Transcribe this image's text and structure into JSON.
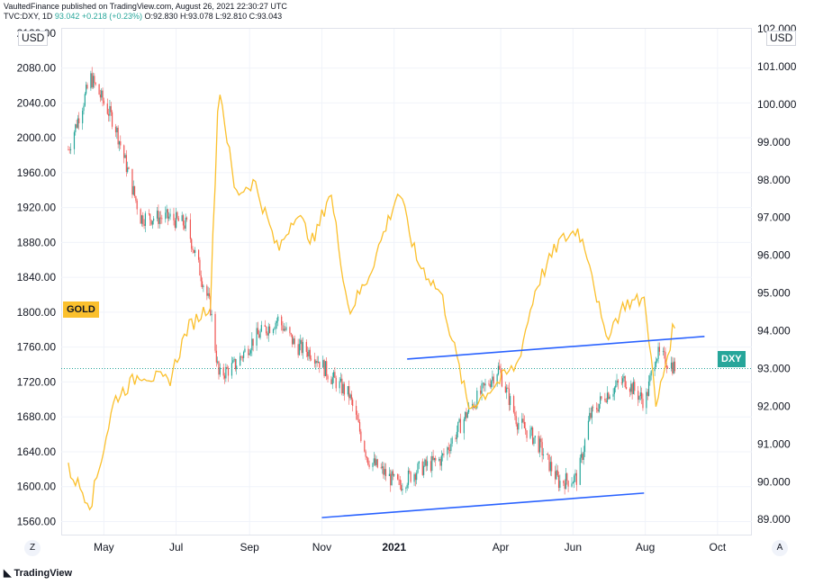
{
  "header": {
    "line1": "VaultedFinance published on TradingView.com, August 26, 2021 22:30:27 UTC",
    "symbol": "TVC:DXY, 1D",
    "last": "93.042",
    "change": "+0.218 (+0.23%)",
    "open": "O:92.830",
    "high": "H:93.078",
    "low": "L:92.810",
    "close": "C:93.043"
  },
  "left_axis": {
    "unit": "USD",
    "top_partial": "2120.00",
    "ticks": [
      "2080.00",
      "2040.00",
      "2000.00",
      "1960.00",
      "1920.00",
      "1880.00",
      "1840.00",
      "1800.00",
      "1760.00",
      "1720.00",
      "1680.00",
      "1640.00",
      "1600.00",
      "1560.00"
    ]
  },
  "right_axis": {
    "unit": "USD",
    "top_partial": "102.000",
    "ticks": [
      "101.000",
      "100.000",
      "99.000",
      "98.000",
      "97.000",
      "96.000",
      "95.000",
      "94.000",
      "93.000",
      "92.000",
      "91.000",
      "90.000",
      "89.000"
    ]
  },
  "x_axis": {
    "ticks": [
      "May",
      "Jul",
      "Sep",
      "Nov",
      "2021",
      "Apr",
      "Jun",
      "Aug",
      "Oct"
    ]
  },
  "buttons": {
    "left": "Z",
    "right": "A"
  },
  "labels": {
    "gold": "GOLD",
    "dxy": "DXY",
    "logo": "TradingView"
  },
  "colors": {
    "gold": "#fbc02d",
    "up": "#26a69a",
    "down": "#ef5350",
    "trend": "#2962ff",
    "dxy_tag": "#26a69a",
    "gold_tag": "#fbc02d"
  },
  "chart_data": {
    "type": "line",
    "x": [
      "2020-04-01",
      "2020-04-20",
      "2020-05-10",
      "2020-06-01",
      "2020-06-25",
      "2020-07-10",
      "2020-07-30",
      "2020-08-06",
      "2020-08-20",
      "2020-09-05",
      "2020-09-25",
      "2020-10-10",
      "2020-10-25",
      "2020-11-08",
      "2020-11-24",
      "2020-12-10",
      "2021-01-05",
      "2021-01-20",
      "2021-02-10",
      "2021-03-05",
      "2021-03-30",
      "2021-04-15",
      "2021-05-01",
      "2021-05-20",
      "2021-06-05",
      "2021-06-15",
      "2021-06-28",
      "2021-07-15",
      "2021-08-01",
      "2021-08-10",
      "2021-08-26"
    ],
    "series": [
      {
        "name": "GOLD",
        "axis": "left",
        "values": [
          1620,
          1580,
          1700,
          1730,
          1720,
          1780,
          1810,
          2065,
          1935,
          1950,
          1870,
          1915,
          1880,
          1940,
          1800,
          1840,
          1940,
          1860,
          1820,
          1690,
          1720,
          1740,
          1830,
          1880,
          1895,
          1860,
          1770,
          1810,
          1815,
          1690,
          1790
        ]
      },
      {
        "name": "DXY",
        "axis": "right",
        "type": "candlestick",
        "values": [
          98.8,
          100.7,
          99.5,
          97.0,
          97.0,
          96.8,
          94.6,
          92.8,
          93.1,
          93.8,
          94.3,
          93.6,
          93.4,
          92.8,
          92.3,
          90.6,
          89.9,
          90.3,
          90.6,
          91.9,
          93.0,
          91.6,
          91.1,
          90.0,
          90.1,
          91.7,
          92.3,
          92.7,
          92.1,
          93.4,
          93.04
        ]
      }
    ],
    "trendlines": [
      {
        "from": [
          "2020-11-01",
          89.05
        ],
        "to": [
          "2021-07-31",
          89.7
        ]
      },
      {
        "from": [
          "2021-01-12",
          93.25
        ],
        "to": [
          "2021-09-20",
          93.85
        ]
      }
    ],
    "dotted_level": {
      "axis": "right",
      "value": 93.0
    },
    "left_ylim": [
      1545,
      2125
    ],
    "right_ylim": [
      88.6,
      102.0
    ],
    "xlim": [
      "2020-03-26",
      "2021-10-30"
    ]
  }
}
